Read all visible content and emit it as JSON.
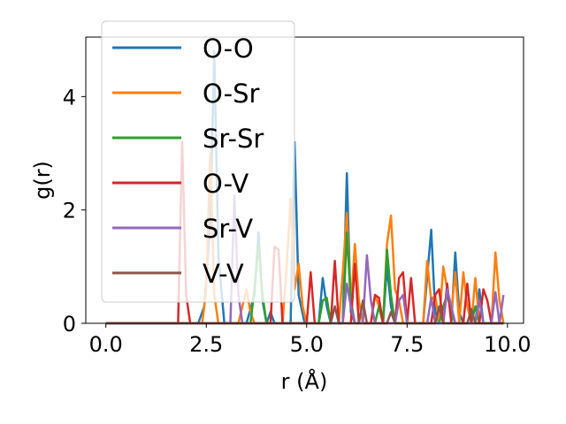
{
  "chart_data": {
    "type": "line",
    "xlabel": "r (Å)",
    "ylabel": "g(r)",
    "xlim": [
      -0.5,
      10.4
    ],
    "ylim": [
      0,
      5.05
    ],
    "xticks": [
      0.0,
      2.5,
      5.0,
      7.5,
      10.0
    ],
    "xtick_labels": [
      "0.0",
      "2.5",
      "5.0",
      "7.5",
      "10.0"
    ],
    "yticks": [
      0,
      2,
      4
    ],
    "ytick_labels": [
      "0",
      "2",
      "4"
    ],
    "grid": false,
    "legend_placement": "upper-left",
    "series": [
      {
        "name": "O-O",
        "color": "#1f77b4",
        "points": [
          [
            0.0,
            0
          ],
          [
            2.3,
            0
          ],
          [
            2.45,
            0.3
          ],
          [
            2.6,
            1.8
          ],
          [
            2.7,
            4.8
          ],
          [
            2.8,
            1.2
          ],
          [
            2.95,
            0
          ],
          [
            3.5,
            0
          ],
          [
            3.7,
            0.5
          ],
          [
            3.8,
            1.6
          ],
          [
            3.9,
            0.4
          ],
          [
            4.0,
            0
          ],
          [
            4.1,
            0.2
          ],
          [
            4.2,
            0
          ],
          [
            4.6,
            0
          ],
          [
            4.7,
            3.2
          ],
          [
            4.8,
            0.5
          ],
          [
            4.95,
            0
          ],
          [
            5.3,
            0
          ],
          [
            5.4,
            0.8
          ],
          [
            5.5,
            0.3
          ],
          [
            5.6,
            0
          ],
          [
            5.9,
            0
          ],
          [
            6.0,
            2.65
          ],
          [
            6.1,
            0.2
          ],
          [
            6.2,
            0
          ],
          [
            6.9,
            0
          ],
          [
            7.0,
            1.0
          ],
          [
            7.1,
            0.3
          ],
          [
            7.2,
            0
          ],
          [
            7.9,
            0
          ],
          [
            8.1,
            1.65
          ],
          [
            8.2,
            0.2
          ],
          [
            8.3,
            0
          ],
          [
            8.6,
            0
          ],
          [
            8.7,
            1.25
          ],
          [
            8.8,
            0.2
          ],
          [
            8.9,
            0
          ],
          [
            9.2,
            0
          ],
          [
            9.3,
            0.6
          ],
          [
            9.4,
            0
          ],
          [
            9.9,
            0
          ]
        ]
      },
      {
        "name": "O-Sr",
        "color": "#ff7f0e",
        "points": [
          [
            0.0,
            0
          ],
          [
            2.4,
            0
          ],
          [
            2.5,
            0.6
          ],
          [
            2.6,
            3.0
          ],
          [
            2.7,
            0.5
          ],
          [
            2.8,
            0
          ],
          [
            3.3,
            0
          ],
          [
            3.4,
            0.3
          ],
          [
            3.5,
            0.6
          ],
          [
            3.6,
            0.2
          ],
          [
            3.7,
            0
          ],
          [
            4.4,
            0
          ],
          [
            4.5,
            1.0
          ],
          [
            4.6,
            2.2
          ],
          [
            4.7,
            0.6
          ],
          [
            4.8,
            1.05
          ],
          [
            4.9,
            0.3
          ],
          [
            5.0,
            0
          ],
          [
            5.8,
            0
          ],
          [
            5.9,
            0.9
          ],
          [
            6.0,
            1.95
          ],
          [
            6.1,
            0.3
          ],
          [
            6.2,
            1.4
          ],
          [
            6.3,
            0.4
          ],
          [
            6.4,
            0
          ],
          [
            6.6,
            0
          ],
          [
            6.7,
            0.5
          ],
          [
            6.8,
            0.3
          ],
          [
            6.9,
            0
          ],
          [
            7.0,
            1.4
          ],
          [
            7.1,
            1.9
          ],
          [
            7.2,
            0.6
          ],
          [
            7.3,
            0.4
          ],
          [
            7.4,
            0
          ],
          [
            7.9,
            0
          ],
          [
            8.0,
            1.1
          ],
          [
            8.1,
            0.4
          ],
          [
            8.2,
            0.5
          ],
          [
            8.3,
            0
          ],
          [
            8.4,
            1.0
          ],
          [
            8.5,
            0.6
          ],
          [
            8.6,
            0.2
          ],
          [
            8.7,
            0.9
          ],
          [
            8.8,
            0
          ],
          [
            8.9,
            0.9
          ],
          [
            9.0,
            0.3
          ],
          [
            9.1,
            0
          ],
          [
            9.2,
            0.8
          ],
          [
            9.3,
            0
          ],
          [
            9.6,
            0
          ],
          [
            9.7,
            1.25
          ],
          [
            9.8,
            0.4
          ],
          [
            9.9,
            0
          ]
        ]
      },
      {
        "name": "Sr-Sr",
        "color": "#2ca02c",
        "points": [
          [
            0.0,
            0
          ],
          [
            3.6,
            0
          ],
          [
            3.7,
            0.6
          ],
          [
            3.8,
            1.4
          ],
          [
            3.9,
            0.5
          ],
          [
            4.0,
            0
          ],
          [
            5.3,
            0
          ],
          [
            5.4,
            0.4
          ],
          [
            5.5,
            0.45
          ],
          [
            5.6,
            0
          ],
          [
            5.9,
            0
          ],
          [
            6.0,
            1.6
          ],
          [
            6.1,
            0.4
          ],
          [
            6.2,
            0
          ],
          [
            6.7,
            0
          ],
          [
            6.8,
            0.3
          ],
          [
            6.9,
            0
          ],
          [
            7.0,
            1.3
          ],
          [
            7.1,
            0.5
          ],
          [
            7.2,
            0
          ],
          [
            8.3,
            0
          ],
          [
            8.4,
            0.3
          ],
          [
            8.5,
            0.5
          ],
          [
            8.6,
            0.2
          ],
          [
            8.7,
            0
          ],
          [
            9.1,
            0
          ],
          [
            9.2,
            0.3
          ],
          [
            9.3,
            0
          ],
          [
            9.9,
            0
          ]
        ]
      },
      {
        "name": "O-V",
        "color": "#d62728",
        "points": [
          [
            0.0,
            0
          ],
          [
            1.8,
            0
          ],
          [
            1.9,
            3.2
          ],
          [
            2.0,
            0.5
          ],
          [
            2.1,
            0
          ],
          [
            4.1,
            0
          ],
          [
            4.2,
            1.35
          ],
          [
            4.3,
            1.3
          ],
          [
            4.4,
            0
          ],
          [
            5.0,
            0
          ],
          [
            5.1,
            0.9
          ],
          [
            5.2,
            0
          ],
          [
            5.6,
            0
          ],
          [
            5.7,
            1.1
          ],
          [
            5.8,
            0
          ],
          [
            6.1,
            0
          ],
          [
            6.2,
            1.05
          ],
          [
            6.3,
            0
          ],
          [
            6.6,
            0
          ],
          [
            6.7,
            0.5
          ],
          [
            6.8,
            0.45
          ],
          [
            6.9,
            0
          ],
          [
            7.2,
            0
          ],
          [
            7.3,
            0.8
          ],
          [
            7.4,
            0.9
          ],
          [
            7.5,
            0
          ],
          [
            7.6,
            0.8
          ],
          [
            7.7,
            0
          ],
          [
            8.1,
            0
          ],
          [
            8.2,
            0.5
          ],
          [
            8.3,
            0.6
          ],
          [
            8.4,
            0
          ],
          [
            8.5,
            0.7
          ],
          [
            8.6,
            0
          ],
          [
            8.9,
            0
          ],
          [
            9.0,
            0.7
          ],
          [
            9.1,
            0
          ],
          [
            9.3,
            0
          ],
          [
            9.4,
            0.6
          ],
          [
            9.5,
            0.4
          ],
          [
            9.6,
            0
          ],
          [
            9.9,
            0
          ]
        ]
      },
      {
        "name": "Sr-V",
        "color": "#9467bd",
        "points": [
          [
            0.0,
            0
          ],
          [
            3.1,
            0
          ],
          [
            3.2,
            2.25
          ],
          [
            3.3,
            0.5
          ],
          [
            3.4,
            0
          ],
          [
            5.9,
            0
          ],
          [
            6.0,
            0.7
          ],
          [
            6.1,
            0.3
          ],
          [
            6.2,
            0
          ],
          [
            6.4,
            0
          ],
          [
            6.5,
            1.2
          ],
          [
            6.6,
            0.4
          ],
          [
            6.7,
            0
          ],
          [
            7.2,
            0
          ],
          [
            7.3,
            0.4
          ],
          [
            7.4,
            0.5
          ],
          [
            7.5,
            0
          ],
          [
            8.0,
            0
          ],
          [
            8.1,
            0.45
          ],
          [
            8.2,
            0
          ],
          [
            8.4,
            0
          ],
          [
            8.5,
            0.6
          ],
          [
            8.6,
            0.3
          ],
          [
            8.7,
            0
          ],
          [
            9.2,
            0
          ],
          [
            9.3,
            0.4
          ],
          [
            9.4,
            0
          ],
          [
            9.6,
            0
          ],
          [
            9.7,
            0.55
          ],
          [
            9.8,
            0
          ],
          [
            9.9,
            0.5
          ]
        ]
      },
      {
        "name": "V-V",
        "color": "#8c564b",
        "points": [
          [
            0.0,
            0
          ],
          [
            5.6,
            0
          ],
          [
            5.7,
            0.3
          ],
          [
            5.8,
            0
          ],
          [
            6.3,
            0
          ],
          [
            6.4,
            0.4
          ],
          [
            6.5,
            0
          ],
          [
            7.0,
            0
          ],
          [
            7.1,
            0.2
          ],
          [
            7.2,
            0
          ],
          [
            8.2,
            0
          ],
          [
            8.3,
            0.3
          ],
          [
            8.4,
            0
          ],
          [
            9.0,
            0
          ],
          [
            9.1,
            0.25
          ],
          [
            9.2,
            0
          ],
          [
            9.9,
            0
          ]
        ]
      }
    ]
  }
}
